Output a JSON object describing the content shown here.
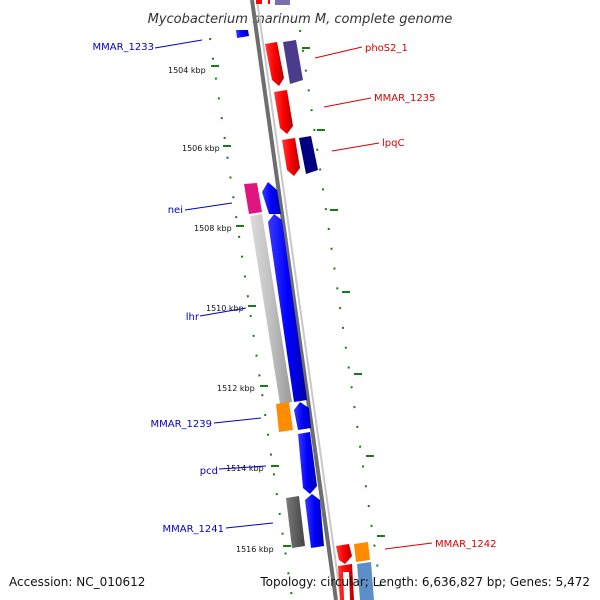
{
  "title": "Mycobacterium marinum M, complete genome",
  "footer": {
    "accession": "Accession: NC_010612",
    "summary": "Topology: circular; Length: 6,636,827 bp; Genes: 5,472"
  },
  "colors": {
    "backbone_dark": "#6e6e6e",
    "backbone_light": "#c8c8c8",
    "tick": "#1a7a1a",
    "label_forward": "#0000cc",
    "label_reverse": "#dd0000"
  },
  "ticks": [
    {
      "label": "1504 kbp"
    },
    {
      "label": "1506 kbp"
    },
    {
      "label": "1508 kbp"
    },
    {
      "label": "1510 kbp"
    },
    {
      "label": "1512 kbp"
    },
    {
      "label": "1514 kbp"
    },
    {
      "label": "1516 kbp"
    }
  ],
  "gene_labels": {
    "left": [
      "MMAR_1233",
      "nei",
      "lhr",
      "MMAR_1239",
      "pcd",
      "MMAR_1241"
    ],
    "right": [
      "phoS2_1",
      "MMAR_1235",
      "lpqC",
      "MMAR_1242"
    ]
  },
  "features": [
    {
      "name": "MMAR_1233",
      "color": "#0000ff"
    },
    {
      "name": "phoS2_1",
      "color": "#ff0000"
    },
    {
      "name": "phoS2_1-neighbor",
      "color": "#4b3b8c"
    },
    {
      "name": "MMAR_1235",
      "color": "#ff0000"
    },
    {
      "name": "lpqC",
      "color": "#ff0000"
    },
    {
      "name": "lpqC-neighbor",
      "color": "#000080"
    },
    {
      "name": "nei",
      "color": "#e0157f"
    },
    {
      "name": "nei-neighbor",
      "color": "#0000ff"
    },
    {
      "name": "lhr",
      "color": "#c0c0c0"
    },
    {
      "name": "lhr-neighbor",
      "color": "#0000ff"
    },
    {
      "name": "MMAR_1239",
      "color": "#ff8c00"
    },
    {
      "name": "MMAR_1239-neighbor",
      "color": "#0000ff"
    },
    {
      "name": "pcd",
      "color": "#0000ff"
    },
    {
      "name": "MMAR_1241",
      "color": "#5a5a5a"
    },
    {
      "name": "MMAR_1241-neighbor",
      "color": "#0000ff"
    },
    {
      "name": "MMAR_1242",
      "color": "#ff0000"
    },
    {
      "name": "MMAR_1242-neighbor",
      "color": "#ff8c00"
    }
  ]
}
